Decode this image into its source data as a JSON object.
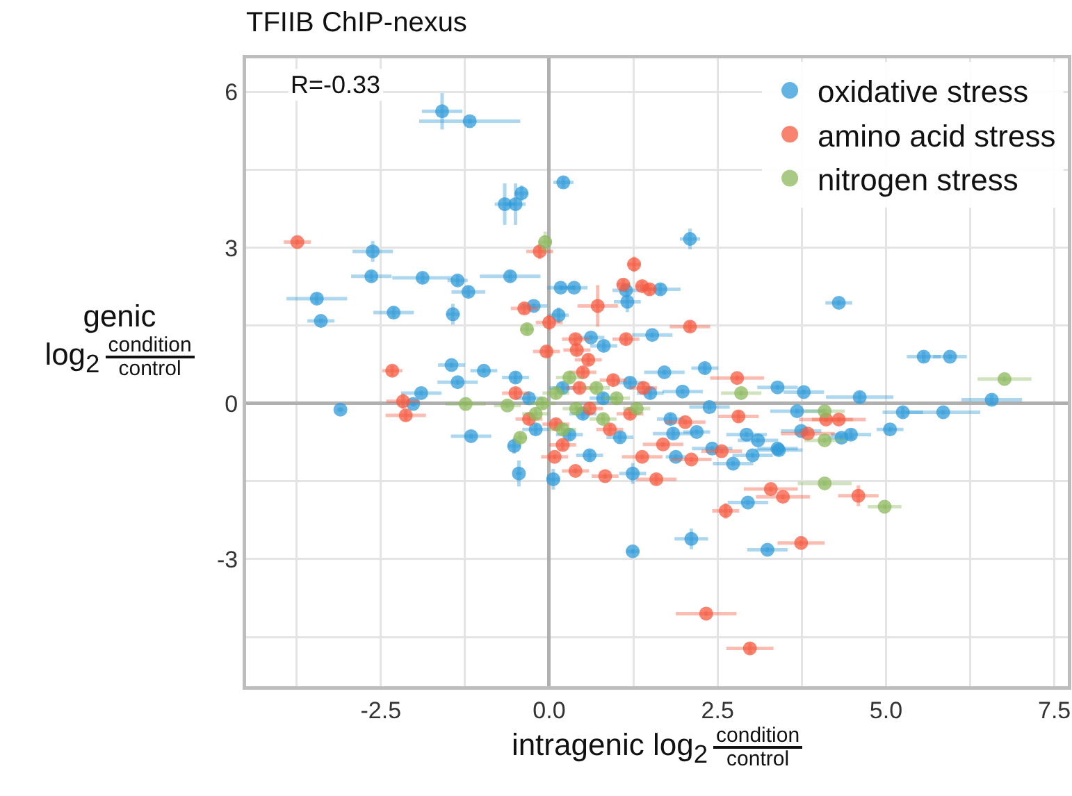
{
  "chart_data": {
    "type": "scatter",
    "title": "TFIIB ChIP-nexus",
    "xlabel": "intragenic log$_{2}$ condition\ncontrol",
    "ylabel": "genic\nlog$_{2}$ condition\ncontrol",
    "annotations": [
      "R=-0.33"
    ],
    "xlim": [
      -4.5,
      7.7
    ],
    "ylim": [
      -5.45,
      6.65
    ],
    "xticks": [
      {
        "value": -3.75,
        "label": null
      },
      {
        "value": -2.5,
        "label": "-2.5"
      },
      {
        "value": -1.25,
        "label": null
      },
      {
        "value": 0,
        "label": "0.0"
      },
      {
        "value": 1.25,
        "label": null
      },
      {
        "value": 2.5,
        "label": "2.5"
      },
      {
        "value": 3.75,
        "label": null
      },
      {
        "value": 5,
        "label": "5.0"
      },
      {
        "value": 6.25,
        "label": null
      },
      {
        "value": 7.5,
        "label": "7.5"
      }
    ],
    "yticks": [
      {
        "value": -4.5,
        "label": null
      },
      -3,
      {
        "value": -1.5,
        "label": null
      },
      0,
      {
        "value": 1.5,
        "label": null
      },
      3,
      {
        "value": 4.5,
        "label": null
      },
      6
    ],
    "grid": true,
    "legend": "top right",
    "marker": "circle",
    "series": [
      {
        "name": "oxidative stress",
        "color": "#2f9bd8",
        "x": [
          -1.59,
          -1.18,
          -0.66,
          -0.5,
          -0.41,
          0.21,
          2.09,
          -2.62,
          -2.64,
          -1.88,
          -1.36,
          -1.2,
          -0.58,
          -3.45,
          -3.39,
          -2.31,
          -1.43,
          0.17,
          0.37,
          1.14,
          1.65,
          1.16,
          0.14,
          0.62,
          0.81,
          1.53,
          -0.23,
          4.3,
          5.56,
          5.95,
          6.57,
          4.61,
          3.78,
          5.25,
          5.85,
          5.06,
          4.48,
          4.34,
          3.68,
          3.74,
          3.41,
          3.39,
          2.93,
          3.1,
          3.39,
          3.02,
          2.73,
          1.88,
          1.84,
          2.19,
          2.42,
          1.24,
          1.24,
          2.11,
          2.95,
          3.24,
          0.06,
          -0.45,
          2.38,
          1.98,
          2.31,
          1.71,
          -3.1,
          -1.9,
          -1.16,
          -0.52,
          -0.97,
          -1.36,
          -2.02,
          -1.45,
          0.2,
          0.5,
          0.8,
          -0.3,
          1.05,
          0.3,
          1.5,
          -0.5,
          1.2,
          0.6,
          -0.2,
          1.8
        ],
        "values": [
          5.63,
          5.44,
          3.84,
          3.84,
          4.05,
          4.26,
          3.17,
          2.93,
          2.45,
          2.42,
          2.37,
          2.15,
          2.45,
          2.02,
          1.59,
          1.75,
          1.72,
          2.23,
          2.23,
          2.18,
          2.2,
          1.96,
          1.7,
          1.27,
          1.11,
          1.32,
          1.88,
          1.94,
          0.9,
          0.9,
          0.07,
          0.12,
          0.22,
          -0.17,
          -0.17,
          -0.5,
          -0.6,
          -0.66,
          -0.15,
          -0.53,
          -0.9,
          0.31,
          -0.6,
          -0.71,
          -0.87,
          -1.0,
          -1.16,
          -1.03,
          -0.58,
          -0.55,
          -0.87,
          -1.35,
          -2.85,
          -2.61,
          -1.91,
          -2.82,
          -1.46,
          -1.35,
          -0.07,
          0.23,
          0.68,
          0.6,
          -0.12,
          0.2,
          -0.63,
          -0.82,
          0.63,
          0.41,
          -0.01,
          0.74,
          0.3,
          -0.2,
          0.1,
          0.1,
          -0.65,
          -0.6,
          0.2,
          0.5,
          0.4,
          -1.0,
          -0.5,
          -0.3
        ],
        "xerrors": [
          0.3,
          0.75,
          0.15,
          0.15,
          0.1,
          0.15,
          0.15,
          0.3,
          0.3,
          0.45,
          0.15,
          0.25,
          0.45,
          0.45,
          0.2,
          0.3,
          0.1,
          0.2,
          0.2,
          0.2,
          0.3,
          0.2,
          0.15,
          0.2,
          0.2,
          0.3,
          0.2,
          0.2,
          0.25,
          0.25,
          0.45,
          0.5,
          0.3,
          0.3,
          0.55,
          0.2,
          0.3,
          0.2,
          0.4,
          0.3,
          0.35,
          0.3,
          0.3,
          0.3,
          0.3,
          0.3,
          0.3,
          0.15,
          0.3,
          0.2,
          0.3,
          0.2,
          0.1,
          0.25,
          0.3,
          0.3,
          0.1,
          0.05,
          0.3,
          0.3,
          0.2,
          0.3,
          0.05,
          0.3,
          0.3,
          0.1,
          0.2,
          0.3,
          0.05,
          0.2,
          0.2,
          0.2,
          0.2,
          0.2,
          0.2,
          0.2,
          0.2,
          0.2,
          0.2,
          0.2,
          0.2,
          0.2
        ],
        "errors": [
          0.35,
          0.05,
          0.4,
          0.4,
          0.15,
          0.1,
          0.2,
          0.2,
          0.1,
          0.1,
          0.1,
          0.1,
          0.1,
          0.1,
          0.05,
          0.1,
          0.2,
          0.05,
          0.05,
          0.05,
          0.1,
          0.2,
          0.15,
          0.05,
          0.1,
          0.05,
          0.05,
          0.05,
          0.1,
          0.05,
          0.1,
          0.1,
          0.05,
          0.1,
          0.05,
          0.05,
          0.1,
          0.05,
          0.05,
          0.05,
          0.05,
          0.05,
          0.05,
          0.05,
          0.05,
          0.05,
          0.05,
          0.05,
          0.1,
          0.05,
          0.05,
          0.2,
          0.05,
          0.2,
          0.05,
          0.05,
          0.2,
          0.25,
          0.05,
          0.05,
          0.1,
          0.05,
          0.05,
          0.05,
          0.05,
          0.15,
          0.05,
          0.05,
          0.05,
          0.05,
          0.1,
          0.1,
          0.1,
          0.1,
          0.1,
          0.1,
          0.1,
          0.1,
          0.1,
          0.1,
          0.1,
          0.1
        ]
      },
      {
        "name": "amino acid stress",
        "color": "#f65a3f",
        "x": [
          -3.74,
          -0.14,
          1.26,
          1.1,
          1.38,
          1.49,
          0.72,
          -0.37,
          0.0,
          2.09,
          0.39,
          1.14,
          0.41,
          0.58,
          -0.04,
          -2.33,
          -2.17,
          -2.13,
          2.79,
          2.81,
          2.02,
          1.69,
          2.11,
          2.56,
          1.59,
          0.83,
          0.39,
          0.08,
          1.38,
          3.29,
          3.47,
          2.62,
          2.33,
          2.98,
          4.11,
          4.3,
          3.84,
          4.59,
          3.74,
          0.45,
          0.6,
          0.95,
          -0.3,
          0.2,
          0.9,
          1.4,
          0.5,
          -0.5,
          0.1,
          1.2
        ],
        "values": [
          3.11,
          2.93,
          2.68,
          2.29,
          2.26,
          2.2,
          1.88,
          1.83,
          1.56,
          1.48,
          1.24,
          1.24,
          1.03,
          0.84,
          1.0,
          0.63,
          0.04,
          -0.23,
          0.49,
          -0.25,
          -0.36,
          -0.79,
          -1.08,
          -0.92,
          -1.46,
          -1.4,
          -1.3,
          -1.03,
          -1.03,
          -1.65,
          -1.8,
          -2.07,
          -4.05,
          -4.72,
          -0.31,
          -0.31,
          -0.58,
          -1.78,
          -2.69,
          0.3,
          -0.1,
          0.45,
          -0.3,
          -0.8,
          -0.5,
          0.3,
          0.6,
          0.2,
          -0.4,
          -0.2
        ],
        "xerrors": [
          0.2,
          0.2,
          0.1,
          0.1,
          0.1,
          0.1,
          0.3,
          0.2,
          0.2,
          0.3,
          0.2,
          0.2,
          0.2,
          0.2,
          0.2,
          0.15,
          0.25,
          0.3,
          0.4,
          0.3,
          0.3,
          0.3,
          0.3,
          0.3,
          0.3,
          0.2,
          0.2,
          0.2,
          0.3,
          0.4,
          0.4,
          0.2,
          0.45,
          0.35,
          0.4,
          0.4,
          0.4,
          0.3,
          0.35,
          0.2,
          0.2,
          0.2,
          0.2,
          0.2,
          0.2,
          0.2,
          0.2,
          0.2,
          0.2,
          0.2
        ],
        "errors": [
          0.05,
          0.15,
          0.15,
          0.1,
          0.1,
          0.1,
          0.4,
          0.1,
          0.15,
          0.1,
          0.1,
          0.1,
          0.1,
          0.1,
          0.1,
          0.1,
          0.15,
          0.1,
          0.05,
          0.1,
          0.05,
          0.05,
          0.05,
          0.05,
          0.1,
          0.05,
          0.05,
          0.05,
          0.05,
          0.05,
          0.05,
          0.15,
          0.05,
          0.1,
          0.05,
          0.05,
          0.05,
          0.2,
          0.05,
          0.1,
          0.1,
          0.1,
          0.1,
          0.1,
          0.1,
          0.1,
          0.1,
          0.1,
          0.1,
          0.1
        ]
      },
      {
        "name": "nitrogen stress",
        "color": "#8cb85c",
        "x": [
          -0.06,
          -0.33,
          -1.24,
          -0.43,
          -0.62,
          2.85,
          6.76,
          4.09,
          4.09,
          4.09,
          4.98,
          0.1,
          0.4,
          0.7,
          -0.2,
          1.0,
          0.3,
          0.8,
          0.2,
          1.3,
          -0.1
        ],
        "values": [
          3.11,
          1.43,
          -0.01,
          -0.66,
          -0.04,
          0.2,
          0.47,
          -0.15,
          -0.71,
          -1.54,
          -1.99,
          0.2,
          -0.1,
          0.3,
          -0.2,
          0.1,
          0.5,
          -0.3,
          -0.5,
          -0.1,
          0.0
        ],
        "xerrors": [
          0.1,
          0.1,
          0.3,
          0.1,
          0.2,
          0.3,
          0.4,
          0.3,
          0.3,
          0.4,
          0.25,
          0.2,
          0.2,
          0.2,
          0.2,
          0.2,
          0.2,
          0.2,
          0.2,
          0.2,
          0.2
        ],
        "errors": [
          0.2,
          0.1,
          0.05,
          0.1,
          0.05,
          0.05,
          0.05,
          0.05,
          0.05,
          0.05,
          0.05,
          0.1,
          0.1,
          0.1,
          0.1,
          0.1,
          0.1,
          0.1,
          0.1,
          0.1,
          0.1
        ]
      }
    ]
  }
}
